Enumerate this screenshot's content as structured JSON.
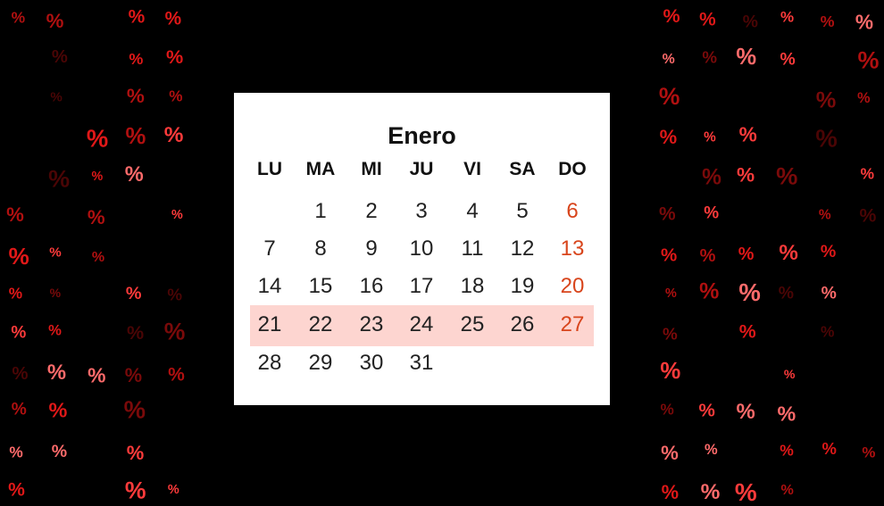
{
  "background": {
    "glyph": "%",
    "colors": [
      "#ff3b3b",
      "#e01818",
      "#b01010",
      "#7a0a0a",
      "#ff6b6b",
      "#4a0505"
    ]
  },
  "calendar": {
    "month": "Enero",
    "weekdays": [
      "LU",
      "MA",
      "MI",
      "JU",
      "VI",
      "SA",
      "DO"
    ],
    "weeks": [
      [
        "",
        "1",
        "2",
        "3",
        "4",
        "5",
        "6"
      ],
      [
        "7",
        "8",
        "9",
        "10",
        "11",
        "12",
        "13"
      ],
      [
        "14",
        "15",
        "16",
        "17",
        "18",
        "19",
        "20"
      ],
      [
        "21",
        "22",
        "23",
        "24",
        "25",
        "26",
        "27"
      ],
      [
        "28",
        "29",
        "30",
        "31",
        "",
        "",
        ""
      ]
    ],
    "highlighted_week": 3,
    "sunday_color": "#d8451c",
    "highlight_color": "#fdd5d0"
  }
}
